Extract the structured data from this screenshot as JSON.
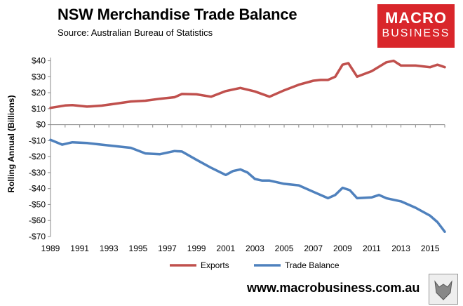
{
  "header": {
    "title": "NSW Merchandise Trade Balance",
    "source": "Source: Australian Bureau of Statistics"
  },
  "logo": {
    "line1": "MACRO",
    "line2": "BUSINESS",
    "bg": "#d9262b"
  },
  "footer": {
    "url": "www.macrobusiness.com.au"
  },
  "chart_data": {
    "type": "line",
    "title": "NSW Merchandise Trade Balance",
    "xlabel": "",
    "ylabel": "Rolling Annual (Billions)",
    "xlim": [
      1989,
      2016
    ],
    "ylim": [
      -70,
      42
    ],
    "y_ticks": [
      40,
      30,
      20,
      10,
      0,
      -10,
      -20,
      -30,
      -40,
      -50,
      -60,
      -70
    ],
    "y_tick_labels": [
      "$40",
      "$30",
      "$20",
      "$10",
      "$0",
      "-$10",
      "-$20",
      "-$30",
      "-$40",
      "-$50",
      "-$60",
      "-$70"
    ],
    "x_ticks": [
      1989,
      1991,
      1993,
      1995,
      1997,
      1999,
      2001,
      2003,
      2005,
      2007,
      2009,
      2011,
      2013,
      2015
    ],
    "x_tick_labels": [
      "1989",
      "1991",
      "1993",
      "1995",
      "1997",
      "1999",
      "2001",
      "2003",
      "2005",
      "2007",
      "2009",
      "2011",
      "2013",
      "2015"
    ],
    "grid": false,
    "legend_position": "bottom",
    "series": [
      {
        "name": "Exports",
        "color": "#c0504d",
        "x": [
          1989.0,
          1990.0,
          1990.5,
          1991.5,
          1992.5,
          1993.5,
          1994.5,
          1995.5,
          1996.5,
          1997.5,
          1998.0,
          1999.0,
          2000.0,
          2001.0,
          2002.0,
          2003.0,
          2004.0,
          2005.0,
          2006.0,
          2007.0,
          2007.5,
          2008.0,
          2008.5,
          2009.0,
          2009.4,
          2010.0,
          2011.0,
          2012.0,
          2012.5,
          2013.0,
          2014.0,
          2015.0,
          2015.5,
          2016.0
        ],
        "values": [
          10.5,
          12.0,
          12.2,
          11.3,
          11.9,
          13.2,
          14.5,
          15.0,
          16.2,
          17.2,
          19.2,
          19.0,
          17.5,
          21.0,
          23.0,
          20.8,
          17.5,
          21.5,
          25.0,
          27.5,
          28.0,
          28.0,
          30.0,
          37.5,
          38.5,
          30.0,
          33.5,
          39.0,
          40.0,
          37.0,
          37.0,
          36.0,
          37.5,
          36.0
        ]
      },
      {
        "name": "Trade Balance",
        "color": "#4f81bd",
        "x": [
          1989.0,
          1989.8,
          1990.5,
          1991.5,
          1992.5,
          1993.5,
          1994.5,
          1995.5,
          1996.5,
          1997.5,
          1998.0,
          1999.0,
          2000.0,
          2001.0,
          2001.5,
          2002.0,
          2002.5,
          2003.0,
          2003.5,
          2004.0,
          2005.0,
          2006.0,
          2007.0,
          2008.0,
          2008.5,
          2009.0,
          2009.5,
          2010.0,
          2011.0,
          2011.5,
          2012.0,
          2013.0,
          2014.0,
          2015.0,
          2015.5,
          2016.0
        ],
        "values": [
          -9.5,
          -12.5,
          -11.0,
          -11.5,
          -12.5,
          -13.5,
          -14.5,
          -18.0,
          -18.5,
          -16.5,
          -16.8,
          -22.0,
          -27.0,
          -31.5,
          -29.0,
          -28.0,
          -30.0,
          -34.0,
          -35.0,
          -35.0,
          -37.0,
          -38.0,
          -42.0,
          -46.0,
          -44.0,
          -39.5,
          -41.0,
          -46.0,
          -45.5,
          -44.0,
          -46.0,
          -48.0,
          -52.0,
          -57.0,
          -61.0,
          -67.0
        ]
      }
    ]
  }
}
